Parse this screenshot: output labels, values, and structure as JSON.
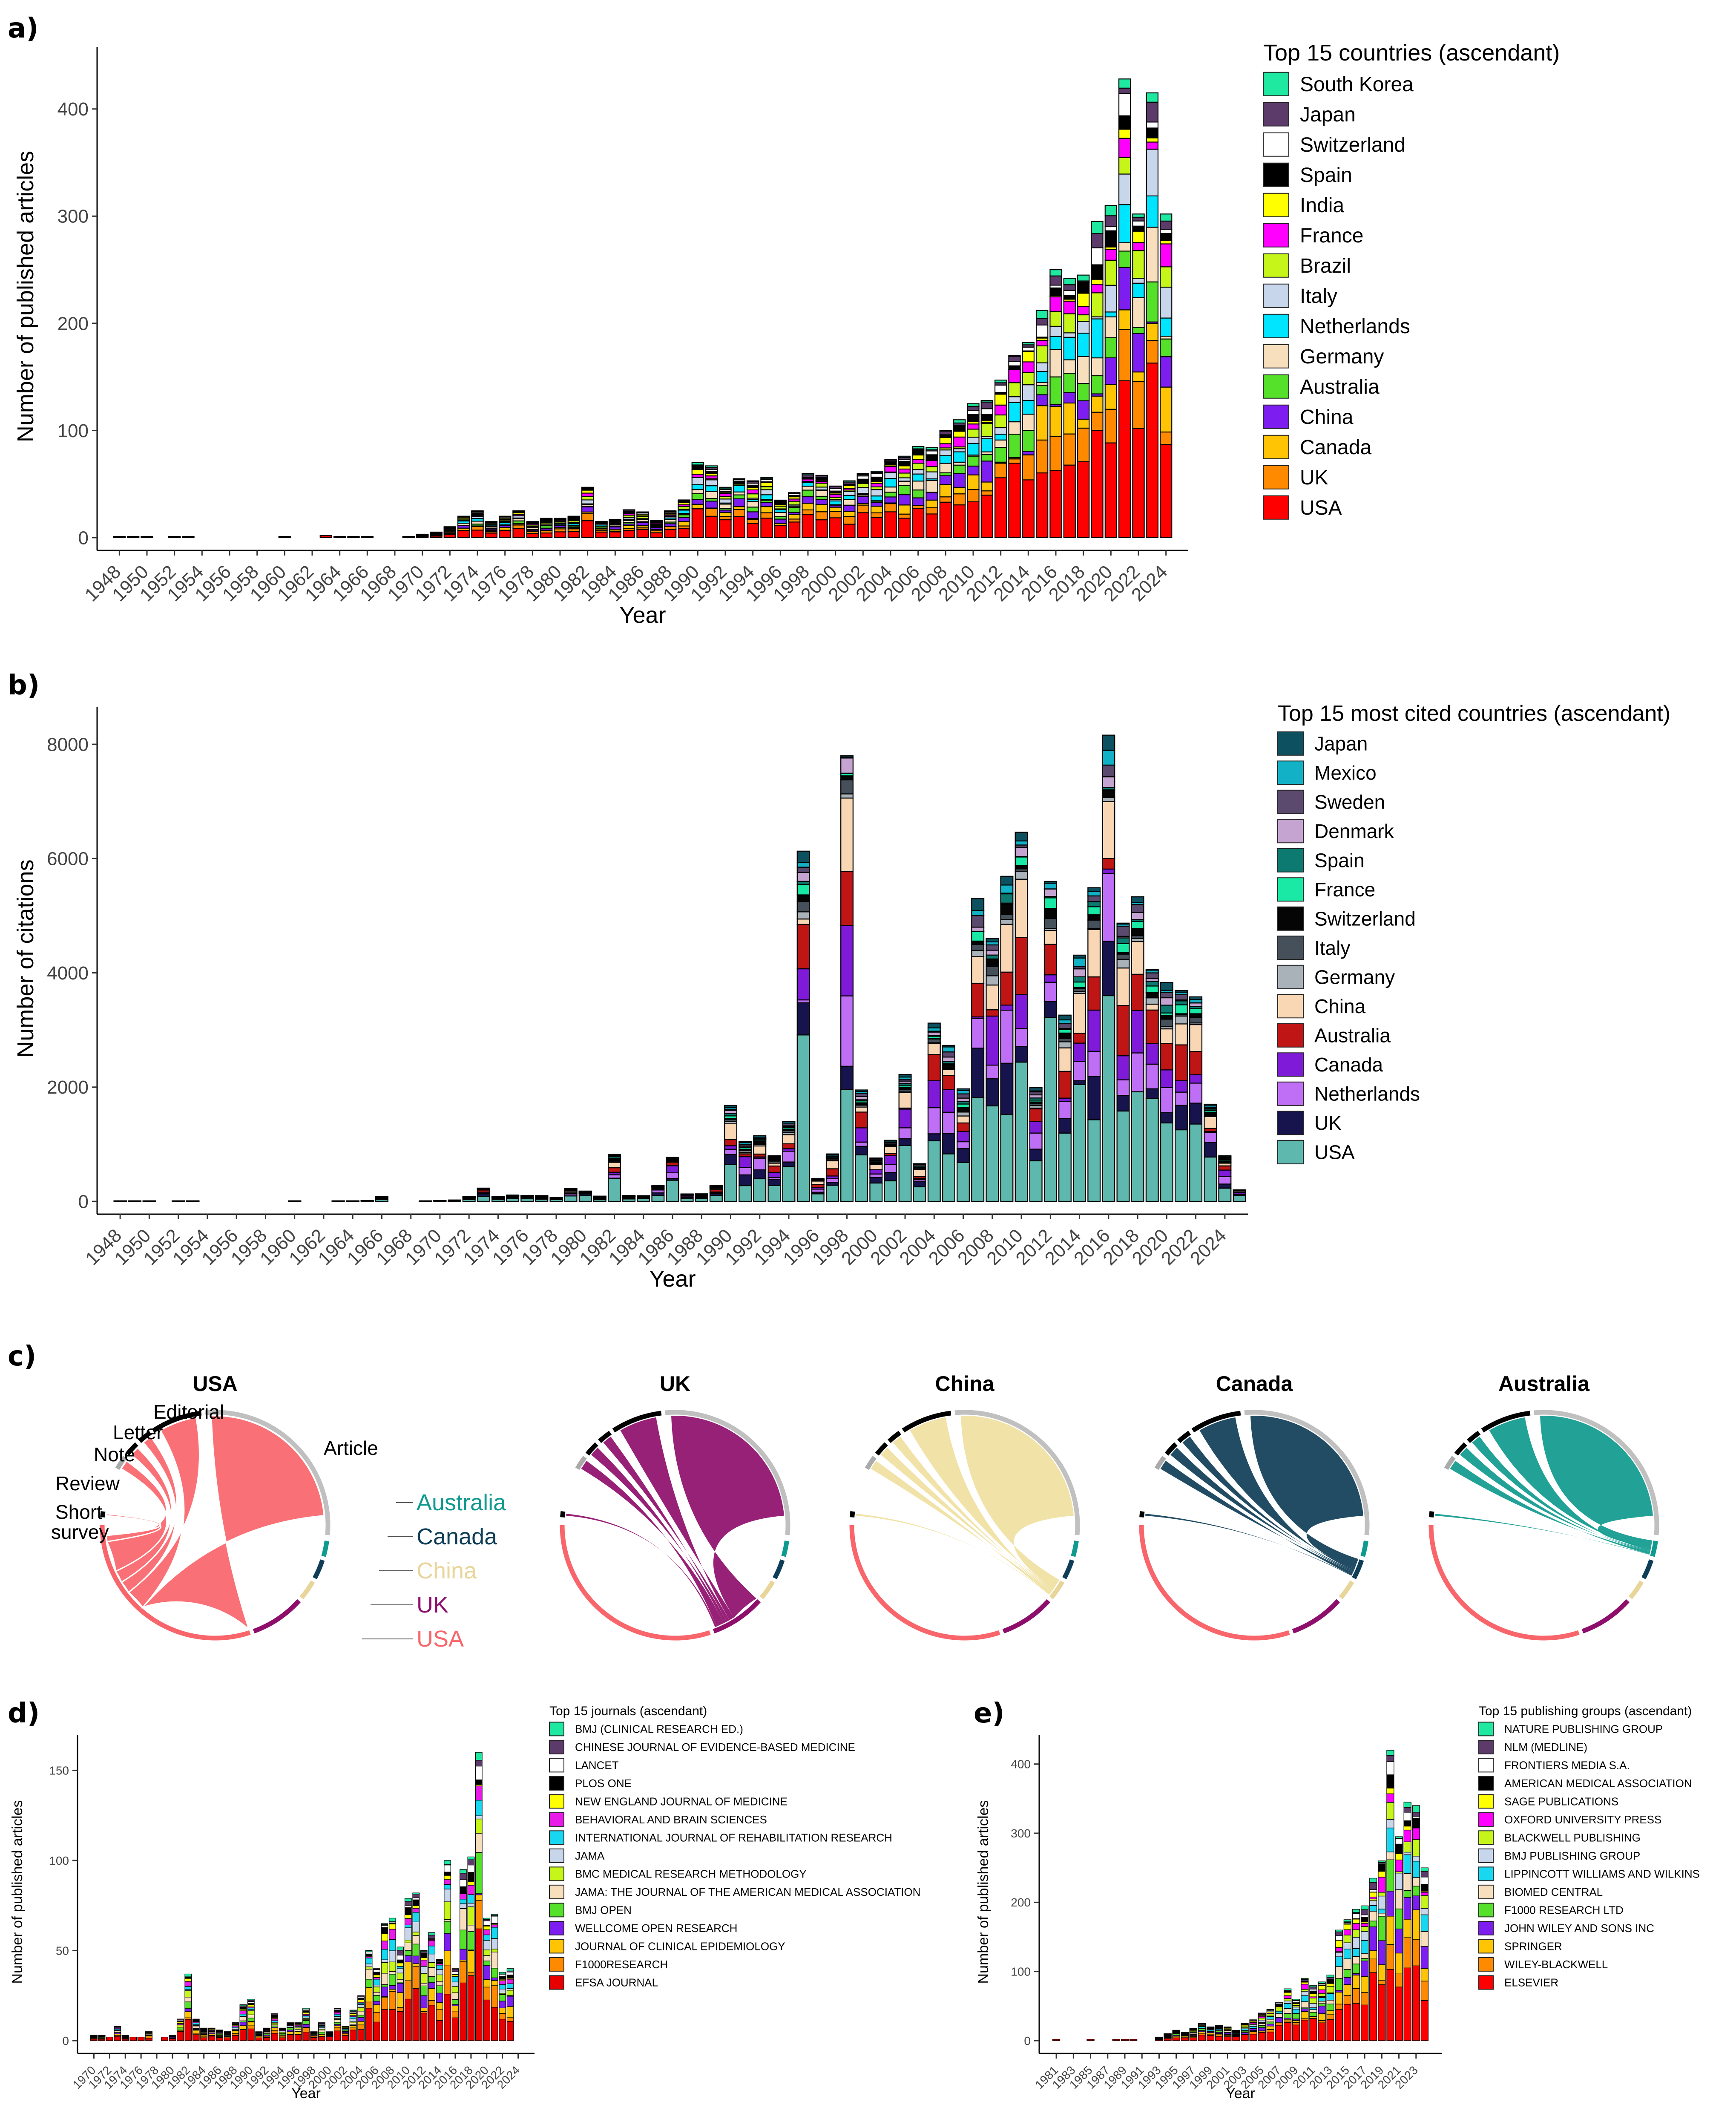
{
  "chart_data": [
    {
      "id": "a",
      "panel_label": "a)",
      "type": "bar",
      "stacked": true,
      "xlabel": "Year",
      "ylabel": "Number of published articles",
      "ylim": [
        0,
        450
      ],
      "yticks": [
        0,
        100,
        200,
        300,
        400
      ],
      "legend_title": "Top 15 countries (ascendant)",
      "legend": [
        "South Korea",
        "Japan",
        "Switzerland",
        "Spain",
        "India",
        "France",
        "Brazil",
        "Italy",
        "Netherlands",
        "Germany",
        "Australia",
        "China",
        "Canada",
        "UK",
        "USA"
      ],
      "colors": {
        "South Korea": "#1fe9a0",
        "Japan": "#5c3b6a",
        "Switzerland": "#ffffff",
        "Spain": "#000000",
        "India": "#ffff00",
        "France": "#ff00ff",
        "Brazil": "#c6f51a",
        "Italy": "#c8d6ec",
        "Netherlands": "#00e5ff",
        "Germany": "#f7dfbe",
        "Australia": "#55e02a",
        "China": "#7d1df0",
        "Canada": "#ffc505",
        "UK": "#ff8a00",
        "USA": "#ff0000"
      },
      "x_start": 1948,
      "x_end": 2024,
      "xticks": [
        1948,
        1950,
        1952,
        1954,
        1956,
        1958,
        1960,
        1962,
        1964,
        1966,
        1968,
        1970,
        1972,
        1974,
        1976,
        1978,
        1980,
        1982,
        1984,
        1986,
        1988,
        1990,
        1992,
        1994,
        1996,
        1998,
        2000,
        2002,
        2004,
        2006,
        2008,
        2010,
        2012,
        2014,
        2016,
        2018,
        2020,
        2022,
        2024
      ],
      "totals": {
        "1948": 1,
        "1949": 1,
        "1950": 1,
        "1952": 1,
        "1953": 1,
        "1960": 1,
        "1963": 2,
        "1964": 1,
        "1965": 1,
        "1966": 1,
        "1969": 1,
        "1970": 3,
        "1971": 5,
        "1972": 10,
        "1973": 20,
        "1974": 25,
        "1975": 15,
        "1976": 20,
        "1977": 25,
        "1978": 15,
        "1979": 18,
        "1980": 18,
        "1981": 20,
        "1982": 47,
        "1983": 15,
        "1984": 17,
        "1985": 26,
        "1986": 24,
        "1987": 16,
        "1988": 25,
        "1989": 35,
        "1990": 70,
        "1991": 67,
        "1992": 47,
        "1993": 55,
        "1994": 53,
        "1995": 56,
        "1996": 35,
        "1997": 42,
        "1998": 60,
        "1999": 58,
        "2000": 48,
        "2001": 53,
        "2002": 60,
        "2003": 62,
        "2004": 73,
        "2005": 76,
        "2006": 85,
        "2007": 84,
        "2008": 100,
        "2009": 110,
        "2010": 125,
        "2011": 128,
        "2012": 147,
        "2013": 170,
        "2014": 182,
        "2015": 212,
        "2016": 250,
        "2017": 242,
        "2018": 245,
        "2019": 295,
        "2020": 310,
        "2021": 428,
        "2022": 302,
        "2023": 415,
        "2024": 302
      },
      "usa_share": 0.3
    },
    {
      "id": "b",
      "panel_label": "b)",
      "type": "bar",
      "stacked": true,
      "xlabel": "Year",
      "ylabel": "Number of citations",
      "ylim": [
        0,
        8500
      ],
      "yticks": [
        0,
        2000,
        4000,
        6000,
        8000
      ],
      "legend_title": "Top 15 most cited countries (ascendant)",
      "legend": [
        "Japan",
        "Mexico",
        "Sweden",
        "Denmark",
        "Spain",
        "France",
        "Switzerland",
        "Italy",
        "Germany",
        "China",
        "Australia",
        "Canada",
        "Netherlands",
        "UK",
        "USA"
      ],
      "colors": {
        "Japan": "#0d5060",
        "Mexico": "#13b1c6",
        "Sweden": "#5c4a6e",
        "Denmark": "#c5a4d2",
        "Spain": "#0c7a70",
        "France": "#19e9a5",
        "Switzerland": "#050505",
        "Italy": "#46505a",
        "Germany": "#a9b1b9",
        "China": "#f9d7b5",
        "Australia": "#c01515",
        "Canada": "#7e1ad8",
        "Netherlands": "#bf6ff5",
        "UK": "#17134d",
        "USA": "#5eb8ad"
      },
      "x_start": 1948,
      "x_end": 2024,
      "xticks": [
        1948,
        1950,
        1952,
        1954,
        1956,
        1958,
        1960,
        1962,
        1964,
        1966,
        1968,
        1970,
        1972,
        1974,
        1976,
        1978,
        1980,
        1982,
        1984,
        1986,
        1988,
        1990,
        1992,
        1994,
        1996,
        1998,
        2000,
        2002,
        2004,
        2006,
        2008,
        2010,
        2012,
        2014,
        2016,
        2018,
        2020,
        2022,
        2024
      ],
      "totals": {
        "1948": 5,
        "1949": 5,
        "1950": 5,
        "1952": 5,
        "1953": 5,
        "1960": 5,
        "1963": 5,
        "1964": 5,
        "1965": 10,
        "1966": 80,
        "1969": 5,
        "1970": 10,
        "1971": 20,
        "1972": 80,
        "1973": 230,
        "1974": 80,
        "1975": 110,
        "1976": 100,
        "1977": 100,
        "1978": 70,
        "1979": 230,
        "1980": 180,
        "1981": 90,
        "1982": 820,
        "1983": 100,
        "1984": 100,
        "1985": 280,
        "1986": 770,
        "1987": 130,
        "1988": 130,
        "1989": 280,
        "1990": 1680,
        "1991": 1050,
        "1992": 1150,
        "1993": 800,
        "1994": 1400,
        "1995": 6130,
        "1996": 400,
        "1997": 830,
        "1998": 7800,
        "1999": 1950,
        "2000": 760,
        "2001": 1070,
        "2002": 2220,
        "2003": 660,
        "2004": 3120,
        "2005": 2730,
        "2006": 1970,
        "2007": 5300,
        "2008": 4600,
        "2009": 5690,
        "2010": 6460,
        "2011": 1990,
        "2012": 5600,
        "2013": 3260,
        "2014": 4310,
        "2015": 5490,
        "2016": 8160,
        "2017": 4870,
        "2018": 5330,
        "2019": 4060,
        "2020": 3830,
        "2021": 3690,
        "2022": 3580,
        "2023": 1700,
        "2024": 800,
        "2025": 200
      }
    },
    {
      "id": "c",
      "panel_label": "c)",
      "type": "chord",
      "doc_types": [
        "Article",
        "Editorial",
        "Letter",
        "Note",
        "Review",
        "Short survey"
      ],
      "countries": [
        "Australia",
        "Canada",
        "China",
        "UK",
        "USA"
      ],
      "country_colors": {
        "Australia": "#0f9a8e",
        "Canada": "#0e3d57",
        "China": "#e8d59a",
        "UK": "#8e0e6b",
        "USA": "#f8656a"
      },
      "panels": [
        {
          "title": "USA",
          "color": "#f8656a"
        },
        {
          "title": "UK",
          "color": "#8e0e6b"
        },
        {
          "title": "China",
          "color": "#f0e0a0"
        },
        {
          "title": "Canada",
          "color": "#0e3d57"
        },
        {
          "title": "Australia",
          "color": "#0f9a8e"
        }
      ]
    },
    {
      "id": "d",
      "panel_label": "d)",
      "type": "bar",
      "stacked": true,
      "xlabel": "Year",
      "ylabel": "Number of published articles",
      "ylim": [
        0,
        165
      ],
      "yticks": [
        0,
        50,
        100,
        150
      ],
      "legend_title": "Top 15 journals (ascendant)",
      "legend": [
        "BMJ (CLINICAL RESEARCH ED.)",
        "CHINESE JOURNAL OF EVIDENCE-BASED MEDICINE",
        "LANCET",
        "PLOS ONE",
        "NEW ENGLAND JOURNAL OF MEDICINE",
        "BEHAVIORAL AND BRAIN SCIENCES",
        "INTERNATIONAL JOURNAL OF REHABILITATION RESEARCH",
        "JAMA",
        "BMC MEDICAL RESEARCH METHODOLOGY",
        "JAMA: THE JOURNAL OF THE AMERICAN MEDICAL ASSOCIATION",
        "BMJ OPEN",
        "WELLCOME OPEN RESEARCH",
        "JOURNAL OF CLINICAL EPIDEMIOLOGY",
        "F1000RESEARCH",
        "EFSA JOURNAL"
      ],
      "colors": {
        "BMJ (CLINICAL RESEARCH ED.)": "#1fe9a0",
        "CHINESE JOURNAL OF EVIDENCE-BASED MEDICINE": "#5c3b6a",
        "LANCET": "#ffffff",
        "PLOS ONE": "#000000",
        "NEW ENGLAND JOURNAL OF MEDICINE": "#ffff00",
        "BEHAVIORAL AND BRAIN SCIENCES": "#e81be8",
        "INTERNATIONAL JOURNAL OF REHABILITATION RESEARCH": "#18d7f0",
        "JAMA": "#c8d6ec",
        "BMC MEDICAL RESEARCH METHODOLOGY": "#c6f51a",
        "JAMA: THE JOURNAL OF THE AMERICAN MEDICAL ASSOCIATION": "#f7dfbe",
        "BMJ OPEN": "#55e02a",
        "WELLCOME OPEN RESEARCH": "#7d1df0",
        "JOURNAL OF CLINICAL EPIDEMIOLOGY": "#ffc505",
        "F1000RESEARCH": "#ff8a00",
        "EFSA JOURNAL": "#e80000"
      },
      "x_start": 1970,
      "x_end": 2024,
      "xticks": [
        1970,
        1972,
        1974,
        1976,
        1978,
        1980,
        1982,
        1984,
        1986,
        1988,
        1990,
        1992,
        1994,
        1996,
        1998,
        2000,
        2002,
        2004,
        2006,
        2008,
        2010,
        2012,
        2014,
        2016,
        2018,
        2020,
        2022,
        2024
      ],
      "totals": {
        "1970": 3,
        "1971": 3,
        "1972": 2,
        "1973": 8,
        "1974": 3,
        "1975": 2,
        "1976": 2,
        "1977": 5,
        "1979": 2,
        "1980": 3,
        "1981": 12,
        "1982": 37,
        "1983": 12,
        "1984": 7,
        "1985": 7,
        "1986": 6,
        "1987": 5,
        "1988": 10,
        "1989": 20,
        "1990": 23,
        "1991": 5,
        "1992": 7,
        "1993": 15,
        "1994": 7,
        "1995": 10,
        "1996": 10,
        "1997": 18,
        "1998": 5,
        "1999": 10,
        "2000": 5,
        "2001": 18,
        "2002": 8,
        "2003": 17,
        "2004": 25,
        "2005": 50,
        "2006": 40,
        "2007": 65,
        "2008": 68,
        "2009": 52,
        "2010": 79,
        "2011": 82,
        "2012": 50,
        "2013": 60,
        "2014": 45,
        "2015": 100,
        "2016": 40,
        "2017": 95,
        "2018": 102,
        "2019": 160,
        "2020": 68,
        "2021": 70,
        "2022": 38,
        "2023": 40
      }
    },
    {
      "id": "e",
      "panel_label": "e)",
      "type": "bar",
      "stacked": true,
      "xlabel": "Year",
      "ylabel": "Number of published articles",
      "ylim": [
        0,
        430
      ],
      "yticks": [
        0,
        100,
        200,
        300,
        400
      ],
      "legend_title": "Top 15 publishing groups (ascendant)",
      "legend": [
        "NATURE PUBLISHING GROUP",
        "NLM (MEDLINE)",
        "FRONTIERS MEDIA S.A.",
        "AMERICAN MEDICAL ASSOCIATION",
        "SAGE PUBLICATIONS",
        "OXFORD UNIVERSITY PRESS",
        "BLACKWELL PUBLISHING",
        "BMJ PUBLISHING GROUP",
        "LIPPINCOTT WILLIAMS AND WILKINS",
        "BIOMED CENTRAL",
        "F1000 RESEARCH LTD",
        "JOHN WILEY AND SONS INC",
        "SPRINGER",
        "WILEY-BLACKWELL",
        "ELSEVIER"
      ],
      "colors": {
        "NATURE PUBLISHING GROUP": "#1fe9a0",
        "NLM (MEDLINE)": "#5c3b6a",
        "FRONTIERS MEDIA S.A.": "#ffffff",
        "AMERICAN MEDICAL ASSOCIATION": "#000000",
        "SAGE PUBLICATIONS": "#ffff00",
        "OXFORD UNIVERSITY PRESS": "#ff00ff",
        "BLACKWELL PUBLISHING": "#c6f51a",
        "BMJ PUBLISHING GROUP": "#c8d6ec",
        "LIPPINCOTT WILLIAMS AND WILKINS": "#18d7f0",
        "BIOMED CENTRAL": "#f7dfbe",
        "F1000 RESEARCH LTD": "#55e02a",
        "JOHN WILEY AND SONS INC": "#7d1df0",
        "SPRINGER": "#ffc505",
        "WILEY-BLACKWELL": "#ff8a00",
        "ELSEVIER": "#ff0000"
      },
      "x_start": 1981,
      "x_end": 2024,
      "xticks": [
        1981,
        1983,
        1985,
        1987,
        1989,
        1991,
        1993,
        1995,
        1997,
        1999,
        2001,
        2003,
        2005,
        2007,
        2009,
        2011,
        2013,
        2015,
        2017,
        2019,
        2021,
        2023
      ],
      "totals": {
        "1981": 2,
        "1985": 2,
        "1988": 2,
        "1989": 2,
        "1990": 2,
        "1993": 5,
        "1994": 10,
        "1995": 15,
        "1996": 12,
        "1997": 18,
        "1998": 25,
        "1999": 20,
        "2000": 22,
        "2001": 20,
        "2002": 15,
        "2003": 25,
        "2004": 30,
        "2005": 40,
        "2006": 45,
        "2007": 55,
        "2008": 75,
        "2009": 60,
        "2010": 90,
        "2011": 80,
        "2012": 85,
        "2013": 95,
        "2014": 160,
        "2015": 175,
        "2016": 190,
        "2017": 195,
        "2018": 235,
        "2019": 260,
        "2020": 420,
        "2021": 295,
        "2022": 345,
        "2023": 340,
        "2024": 250
      }
    }
  ]
}
